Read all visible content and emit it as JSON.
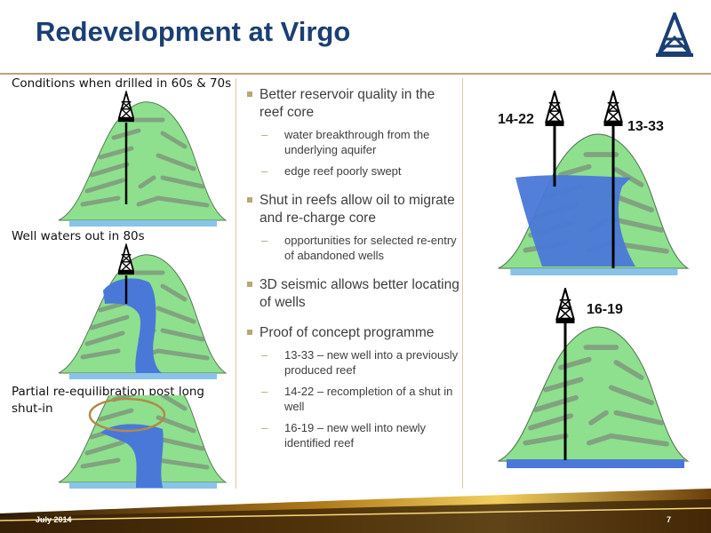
{
  "title": "Redevelopment at Virgo",
  "captions": {
    "drilled": "Conditions when drilled in 60s & 70s",
    "waters_out": "Well waters out in 80s",
    "re_equil": "Partial re-equilibration post long shut-in"
  },
  "bullets": [
    {
      "text": "Better reservoir quality in the reef core",
      "subs": [
        "water breakthrough from the underlying aquifer",
        "edge reef poorly swept"
      ]
    },
    {
      "text": "Shut in reefs allow oil to migrate and re-charge core",
      "subs": [
        "opportunities for selected re-entry of abandoned wells"
      ]
    },
    {
      "text": "3D seismic allows better locating of wells",
      "subs": []
    },
    {
      "text": "Proof of concept programme",
      "subs": [
        "13-33 – new well into a previously produced reef",
        "14-22 – recompletion of a shut in well",
        "16-19 – new well into newly identified reef"
      ]
    }
  ],
  "wells": {
    "w1": "14-22",
    "w2": "13-33",
    "w3": "16-19"
  },
  "footer": {
    "date": "July 2014",
    "page": "7"
  },
  "colors": {
    "title": "#1b3f73",
    "oil": "#8ee08e",
    "water": "#4a78d8",
    "gold": "#c9a64a"
  }
}
